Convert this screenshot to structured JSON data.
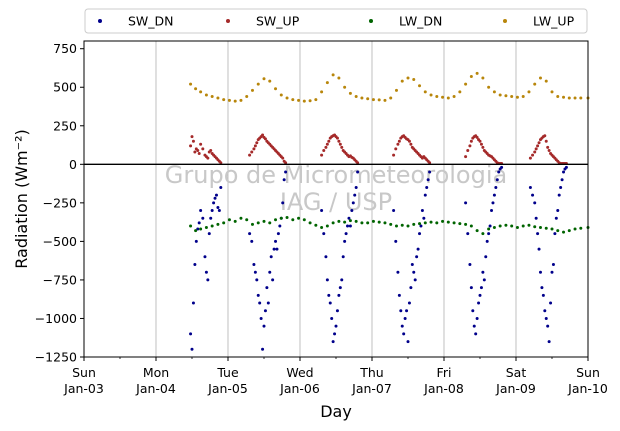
{
  "chart_data": {
    "type": "scatter",
    "title": "",
    "xlabel": "Day",
    "ylabel": "Radiation (Wm⁻²)",
    "ylim": [
      -1250,
      800
    ],
    "xlim": [
      0,
      7
    ],
    "yticks": [
      -1250,
      -1000,
      -750,
      -500,
      -250,
      0,
      250,
      500,
      750
    ],
    "xticks": [
      {
        "day": 0,
        "weekday": "Sun",
        "date": "Jan-03"
      },
      {
        "day": 1,
        "weekday": "Mon",
        "date": "Jan-04"
      },
      {
        "day": 2,
        "weekday": "Tue",
        "date": "Jan-05"
      },
      {
        "day": 3,
        "weekday": "Wed",
        "date": "Jan-06"
      },
      {
        "day": 4,
        "weekday": "Thu",
        "date": "Jan-07"
      },
      {
        "day": 5,
        "weekday": "Fri",
        "date": "Jan-08"
      },
      {
        "day": 6,
        "weekday": "Sat",
        "date": "Jan-09"
      },
      {
        "day": 7,
        "weekday": "Sun",
        "date": "Jan-10"
      }
    ],
    "grid": "x",
    "zero_line": 0,
    "legend_position": "top",
    "watermark": [
      "Grupo de Micrometeorologia",
      "IAG / USP"
    ],
    "series": [
      {
        "name": "SW_DN",
        "color": "#00008b",
        "x": [
          1.48,
          1.5,
          1.52,
          1.54,
          1.56,
          1.58,
          1.6,
          1.62,
          1.65,
          1.68,
          1.7,
          1.72,
          1.74,
          1.76,
          1.78,
          1.8,
          1.82,
          1.84,
          1.86,
          1.88,
          1.9,
          2.3,
          2.33,
          2.36,
          2.38,
          2.4,
          2.42,
          2.44,
          2.46,
          2.48,
          2.5,
          2.52,
          2.54,
          2.56,
          2.58,
          2.6,
          2.62,
          2.64,
          2.66,
          2.68,
          2.7,
          2.72,
          2.74,
          2.76,
          2.78,
          2.8,
          3.3,
          3.33,
          3.36,
          3.38,
          3.4,
          3.42,
          3.44,
          3.46,
          3.48,
          3.5,
          3.52,
          3.54,
          3.56,
          3.58,
          3.6,
          3.62,
          3.64,
          3.66,
          3.68,
          3.7,
          3.72,
          3.74,
          3.76,
          3.78,
          3.8,
          4.3,
          4.33,
          4.36,
          4.38,
          4.4,
          4.42,
          4.44,
          4.46,
          4.48,
          4.5,
          4.52,
          4.54,
          4.56,
          4.58,
          4.6,
          4.62,
          4.64,
          4.66,
          4.68,
          4.7,
          4.72,
          4.74,
          4.76,
          4.78,
          4.8,
          5.3,
          5.33,
          5.36,
          5.38,
          5.4,
          5.42,
          5.44,
          5.46,
          5.48,
          5.5,
          5.52,
          5.54,
          5.56,
          5.58,
          5.6,
          5.62,
          5.64,
          5.66,
          5.68,
          5.7,
          5.72,
          5.74,
          5.76,
          5.78,
          5.8,
          6.2,
          6.23,
          6.26,
          6.28,
          6.3,
          6.32,
          6.34,
          6.36,
          6.38,
          6.4,
          6.42,
          6.44,
          6.46,
          6.48,
          6.5,
          6.52,
          6.54,
          6.56,
          6.58,
          6.6,
          6.62,
          6.64,
          6.66,
          6.68,
          6.7
        ],
        "y": [
          -1100,
          -1200,
          -900,
          -650,
          -500,
          -420,
          -380,
          -300,
          -350,
          -600,
          -700,
          -750,
          -450,
          -350,
          -300,
          -250,
          -220,
          -200,
          -280,
          -300,
          -150,
          -450,
          -500,
          -650,
          -700,
          -750,
          -850,
          -900,
          -1000,
          -1200,
          -1050,
          -950,
          -800,
          -900,
          -700,
          -600,
          -750,
          -550,
          -500,
          -550,
          -450,
          -400,
          -350,
          -250,
          -100,
          -50,
          -300,
          -450,
          -600,
          -750,
          -850,
          -900,
          -1000,
          -1150,
          -1100,
          -1050,
          -950,
          -850,
          -800,
          -750,
          -600,
          -500,
          -450,
          -400,
          -350,
          -400,
          -300,
          -250,
          -200,
          -150,
          -50,
          -300,
          -500,
          -700,
          -850,
          -950,
          -1050,
          -1100,
          -1000,
          -950,
          -1150,
          -900,
          -800,
          -650,
          -700,
          -750,
          -600,
          -550,
          -450,
          -400,
          -300,
          -350,
          -200,
          -150,
          -100,
          -50,
          -250,
          -450,
          -650,
          -800,
          -950,
          -1050,
          -1100,
          -1000,
          -900,
          -850,
          -800,
          -700,
          -750,
          -600,
          -500,
          -450,
          -400,
          -300,
          -250,
          -200,
          -150,
          -100,
          -50,
          -30,
          -20,
          -150,
          -200,
          -250,
          -350,
          -450,
          -550,
          -700,
          -800,
          -850,
          -950,
          -1000,
          -1050,
          -1150,
          -900,
          -700,
          -650,
          -450,
          -350,
          -300,
          -200,
          -150,
          -100,
          -50,
          -30,
          -20
        ]
      },
      {
        "name": "SW_UP",
        "color": "#a52a2a",
        "x": [
          1.48,
          1.5,
          1.52,
          1.54,
          1.56,
          1.58,
          1.6,
          1.62,
          1.65,
          1.68,
          1.7,
          1.72,
          1.74,
          1.76,
          1.78,
          1.8,
          1.82,
          1.84,
          1.86,
          1.88,
          1.9,
          2.3,
          2.33,
          2.36,
          2.38,
          2.4,
          2.42,
          2.44,
          2.46,
          2.48,
          2.5,
          2.52,
          2.54,
          2.56,
          2.58,
          2.6,
          2.62,
          2.64,
          2.66,
          2.68,
          2.7,
          2.72,
          2.74,
          2.76,
          2.78,
          2.8,
          3.3,
          3.33,
          3.36,
          3.38,
          3.4,
          3.42,
          3.44,
          3.46,
          3.48,
          3.5,
          3.52,
          3.54,
          3.56,
          3.58,
          3.6,
          3.62,
          3.64,
          3.66,
          3.68,
          3.7,
          3.72,
          3.74,
          3.76,
          3.78,
          3.8,
          4.3,
          4.33,
          4.36,
          4.38,
          4.4,
          4.42,
          4.44,
          4.46,
          4.48,
          4.5,
          4.52,
          4.54,
          4.56,
          4.58,
          4.6,
          4.62,
          4.64,
          4.66,
          4.68,
          4.7,
          4.72,
          4.74,
          4.76,
          4.78,
          4.8,
          5.3,
          5.33,
          5.36,
          5.38,
          5.4,
          5.42,
          5.44,
          5.46,
          5.48,
          5.5,
          5.52,
          5.54,
          5.56,
          5.58,
          5.6,
          5.62,
          5.64,
          5.66,
          5.68,
          5.7,
          5.72,
          5.74,
          5.76,
          5.78,
          5.8,
          6.2,
          6.23,
          6.26,
          6.28,
          6.3,
          6.32,
          6.34,
          6.36,
          6.38,
          6.4,
          6.42,
          6.44,
          6.46,
          6.48,
          6.5,
          6.52,
          6.54,
          6.56,
          6.58,
          6.6,
          6.62,
          6.64,
          6.66,
          6.68,
          6.7
        ],
        "y": [
          120,
          180,
          150,
          80,
          100,
          90,
          70,
          130,
          100,
          60,
          50,
          40,
          80,
          90,
          70,
          60,
          50,
          40,
          30,
          20,
          10,
          60,
          80,
          100,
          120,
          140,
          160,
          170,
          180,
          190,
          175,
          165,
          150,
          140,
          130,
          120,
          110,
          100,
          90,
          80,
          70,
          60,
          50,
          40,
          20,
          10,
          60,
          90,
          110,
          130,
          150,
          170,
          180,
          185,
          190,
          180,
          170,
          150,
          130,
          110,
          90,
          80,
          70,
          60,
          50,
          55,
          45,
          40,
          30,
          20,
          10,
          60,
          100,
          130,
          150,
          170,
          180,
          185,
          175,
          165,
          160,
          150,
          130,
          110,
          100,
          90,
          80,
          70,
          60,
          50,
          40,
          50,
          40,
          30,
          20,
          10,
          50,
          90,
          120,
          150,
          170,
          180,
          185,
          175,
          160,
          150,
          130,
          110,
          90,
          80,
          70,
          60,
          55,
          50,
          40,
          30,
          20,
          10,
          5,
          5,
          5,
          40,
          60,
          80,
          100,
          120,
          140,
          160,
          170,
          180,
          185,
          150,
          110,
          90,
          70,
          60,
          50,
          40,
          30,
          20,
          10,
          5,
          5,
          5,
          5,
          5
        ]
      },
      {
        "name": "LW_DN",
        "color": "#006400",
        "x": [
          1.48,
          1.55,
          1.62,
          1.7,
          1.78,
          1.86,
          1.94,
          2.02,
          2.1,
          2.18,
          2.26,
          2.34,
          2.42,
          2.5,
          2.58,
          2.66,
          2.74,
          2.82,
          2.9,
          2.98,
          3.06,
          3.14,
          3.22,
          3.3,
          3.38,
          3.46,
          3.54,
          3.62,
          3.7,
          3.78,
          3.86,
          3.94,
          4.02,
          4.1,
          4.18,
          4.26,
          4.34,
          4.42,
          4.5,
          4.58,
          4.66,
          4.74,
          4.82,
          4.9,
          4.98,
          5.06,
          5.14,
          5.22,
          5.3,
          5.38,
          5.46,
          5.54,
          5.62,
          5.7,
          5.78,
          5.86,
          5.94,
          6.02,
          6.1,
          6.18,
          6.26,
          6.34,
          6.42,
          6.5,
          6.58,
          6.66,
          6.74,
          6.82,
          6.9,
          7.0
        ],
        "y": [
          -400,
          -430,
          -420,
          -410,
          -400,
          -390,
          -380,
          -360,
          -370,
          -350,
          -360,
          -390,
          -380,
          -370,
          -380,
          -360,
          -350,
          -345,
          -360,
          -350,
          -360,
          -380,
          -395,
          -410,
          -400,
          -380,
          -370,
          -375,
          -365,
          -370,
          -380,
          -380,
          -370,
          -375,
          -380,
          -390,
          -400,
          -395,
          -400,
          -390,
          -385,
          -380,
          -375,
          -380,
          -370,
          -375,
          -380,
          -385,
          -390,
          -400,
          -430,
          -450,
          -420,
          -410,
          -400,
          -395,
          -400,
          -410,
          -400,
          -395,
          -405,
          -410,
          -415,
          -420,
          -430,
          -440,
          -430,
          -420,
          -415,
          -410
        ]
      },
      {
        "name": "LW_UP",
        "color": "#b8860b",
        "x": [
          1.48,
          1.55,
          1.62,
          1.7,
          1.78,
          1.86,
          1.94,
          2.02,
          2.1,
          2.18,
          2.26,
          2.34,
          2.42,
          2.5,
          2.58,
          2.66,
          2.74,
          2.82,
          2.9,
          2.98,
          3.06,
          3.14,
          3.22,
          3.3,
          3.38,
          3.46,
          3.54,
          3.62,
          3.7,
          3.78,
          3.86,
          3.94,
          4.02,
          4.1,
          4.18,
          4.26,
          4.34,
          4.42,
          4.5,
          4.58,
          4.66,
          4.74,
          4.82,
          4.9,
          4.98,
          5.06,
          5.14,
          5.22,
          5.3,
          5.38,
          5.46,
          5.54,
          5.62,
          5.7,
          5.78,
          5.86,
          5.94,
          6.02,
          6.1,
          6.18,
          6.26,
          6.34,
          6.42,
          6.5,
          6.58,
          6.66,
          6.74,
          6.82,
          6.9,
          7.0
        ],
        "y": [
          520,
          490,
          470,
          450,
          440,
          430,
          420,
          415,
          410,
          415,
          440,
          480,
          520,
          555,
          540,
          490,
          450,
          430,
          420,
          415,
          410,
          412,
          420,
          470,
          530,
          580,
          560,
          500,
          460,
          440,
          430,
          425,
          420,
          418,
          415,
          430,
          480,
          540,
          560,
          550,
          510,
          470,
          450,
          440,
          435,
          430,
          440,
          470,
          520,
          570,
          590,
          560,
          500,
          470,
          450,
          445,
          440,
          435,
          440,
          470,
          520,
          560,
          540,
          470,
          440,
          435,
          430,
          430,
          430,
          430
        ]
      }
    ]
  }
}
